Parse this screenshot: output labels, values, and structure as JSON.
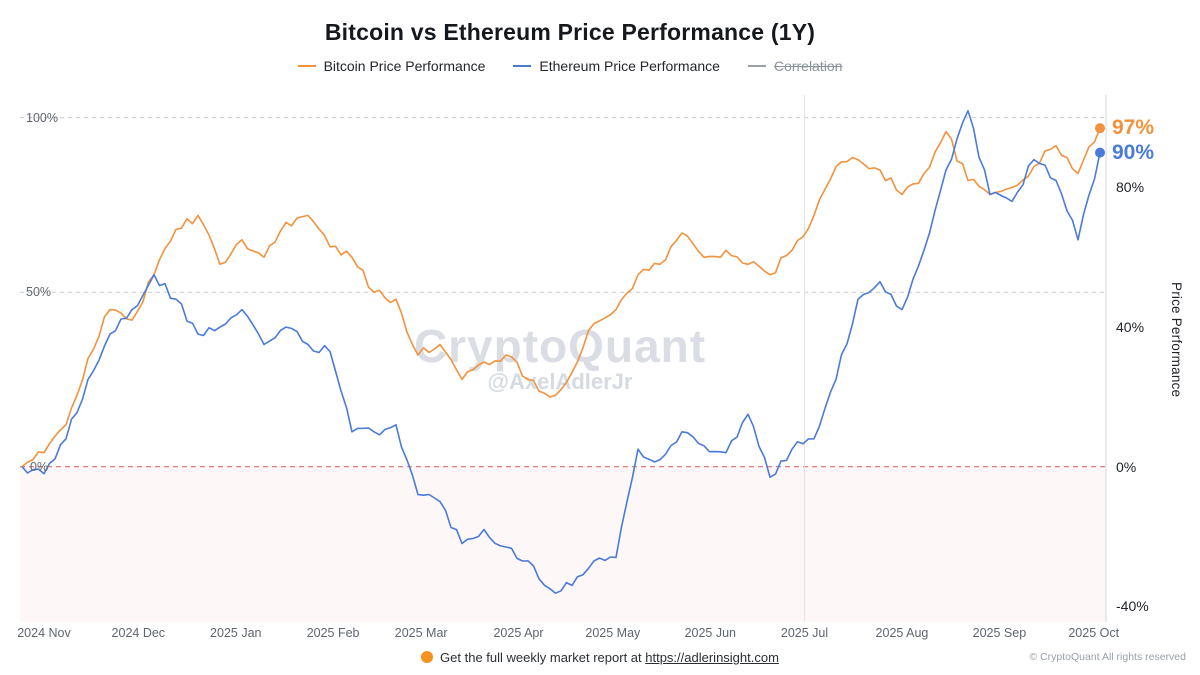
{
  "header": {
    "title": "Bitcoin vs Ethereum Price Performance (1Y)"
  },
  "legend": [
    {
      "label": "Bitcoin Price Performance",
      "color": "#f2923d",
      "strikethrough": false
    },
    {
      "label": "Ethereum Price Performance",
      "color": "#4a7bd9",
      "strikethrough": false
    },
    {
      "label": "Correlation",
      "color": "#9aa0a6",
      "strikethrough": true
    }
  ],
  "watermark": {
    "line1": "CryptoQuant",
    "line2": "@AxelAdlerJr"
  },
  "footer": {
    "text": "Get the full weekly market report at ",
    "link": "https://adlerinsight.com",
    "copyright": "© CryptoQuant All rights reserved"
  },
  "chart_data": {
    "type": "line",
    "title": "Bitcoin vs Ethereum Price Performance (1Y)",
    "ylim": [
      -44.5,
      106.5
    ],
    "right_axis_title": "Price Performance",
    "left_axis_ticks": [
      {
        "label": "100%",
        "value": 100
      },
      {
        "label": "50%",
        "value": 50
      },
      {
        "label": "0%",
        "value": 0
      }
    ],
    "right_axis_ticks": [
      {
        "label": "80%",
        "value": 80
      },
      {
        "label": "40%",
        "value": 40
      },
      {
        "label": "0%",
        "value": 0
      },
      {
        "label": "-40%",
        "value": -40
      }
    ],
    "x_ticks": [
      {
        "label": "2024 Nov",
        "f": 0.0204
      },
      {
        "label": "2024 Dec",
        "f": 0.1079
      },
      {
        "label": "2025 Jan",
        "f": 0.1983
      },
      {
        "label": "2025 Feb",
        "f": 0.2886
      },
      {
        "label": "2025 Mar",
        "f": 0.3703
      },
      {
        "label": "2025 Apr",
        "f": 0.4606
      },
      {
        "label": "2025 May",
        "f": 0.5481
      },
      {
        "label": "2025 Jun",
        "f": 0.6385
      },
      {
        "label": "2025 Jul",
        "f": 0.7259
      },
      {
        "label": "2025 Aug",
        "f": 0.8163
      },
      {
        "label": "2025 Sep",
        "f": 0.9067
      },
      {
        "label": "2025 Oct",
        "f": 0.9942
      }
    ],
    "zero_line": {
      "color": "#df6e6e",
      "shade_below": "rgba(223,110,110,0.055)"
    },
    "grid_color": "#c9ccd1",
    "vertical_marker_f": 0.7259,
    "series": [
      {
        "name": "Bitcoin Price Performance",
        "color": "#f2923d",
        "end_label": "97%",
        "values": [
          0,
          4,
          12,
          31,
          45,
          42,
          55,
          68,
          72,
          58,
          65,
          60,
          70,
          72,
          63,
          60,
          50,
          48,
          32,
          35,
          25,
          30,
          32,
          25,
          20,
          27,
          41,
          45,
          55,
          58,
          67,
          60,
          62,
          58,
          55,
          62,
          72,
          86,
          88,
          85,
          78,
          84,
          96,
          82,
          78,
          80,
          86,
          92,
          84,
          97
        ]
      },
      {
        "name": "Ethereum Price Performance",
        "color": "#4a7bd9",
        "end_label": "90%",
        "values": [
          0,
          -2,
          8,
          25,
          38,
          45,
          55,
          48,
          38,
          40,
          45,
          35,
          40,
          35,
          33,
          10,
          10,
          12,
          -8,
          -10,
          -22,
          -18,
          -23,
          -27,
          -35,
          -34,
          -27,
          -26,
          5,
          2,
          10,
          6,
          4,
          15,
          -3,
          5,
          8,
          25,
          48,
          53,
          45,
          62,
          85,
          102,
          78,
          76,
          88,
          82,
          65,
          90
        ]
      }
    ]
  }
}
